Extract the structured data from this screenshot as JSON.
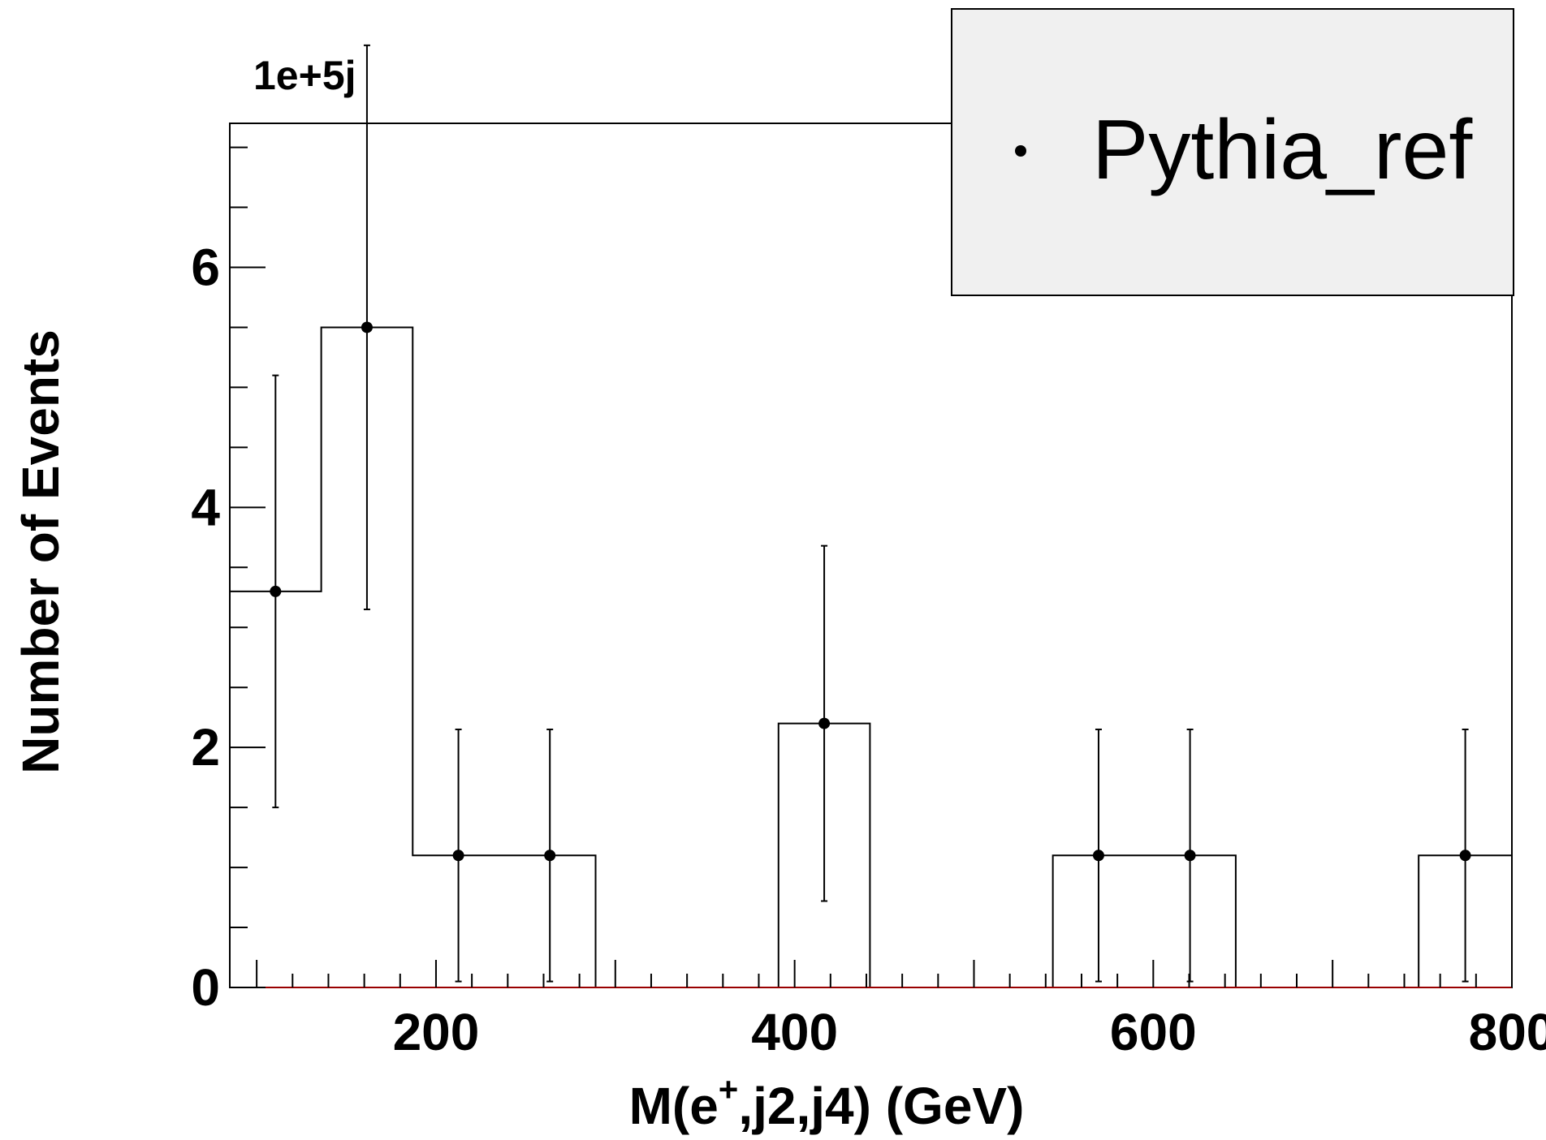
{
  "chart_data": {
    "type": "histogram",
    "xlabel_prefix": "M(e",
    "xlabel_sup": "+",
    "xlabel_suffix": ",j2,j4) (GeV)",
    "ylabel": "Number of Events",
    "y_multiplier_label": "1e+5j",
    "y_multiplier": 100000,
    "xlim": [
      85,
      800
    ],
    "ylim": [
      0,
      7.2
    ],
    "x_major_ticks": [
      200,
      400,
      600,
      800
    ],
    "y_major_ticks": [
      0,
      2,
      4,
      6
    ],
    "x_tick_labels": [
      "200",
      "400",
      "600",
      "800"
    ],
    "y_tick_labels": [
      "0",
      "2",
      "4",
      "6"
    ],
    "grid": false,
    "legend_position": "top-right",
    "series": [
      {
        "name": "Pythia_ref",
        "bin_edges": [
          85,
          136,
          187,
          238,
          289,
          340,
          391,
          442,
          493,
          544,
          595,
          646,
          697,
          748,
          800
        ],
        "values": [
          3.3,
          5.5,
          1.1,
          1.1,
          0,
          0,
          2.2,
          0,
          0,
          1.1,
          1.1,
          0,
          0,
          1.1
        ],
        "err_low": [
          1.8,
          2.35,
          1.05,
          1.05,
          0,
          0,
          1.48,
          0,
          0,
          1.05,
          1.05,
          0,
          0,
          1.05
        ],
        "err_high": [
          1.8,
          2.35,
          1.05,
          1.05,
          0,
          0,
          1.48,
          0,
          0,
          1.05,
          1.05,
          0,
          0,
          1.05
        ]
      }
    ]
  },
  "colors": {
    "line": "#000000",
    "legend_fill": "#f0f0f0",
    "baseline": "#990000"
  }
}
